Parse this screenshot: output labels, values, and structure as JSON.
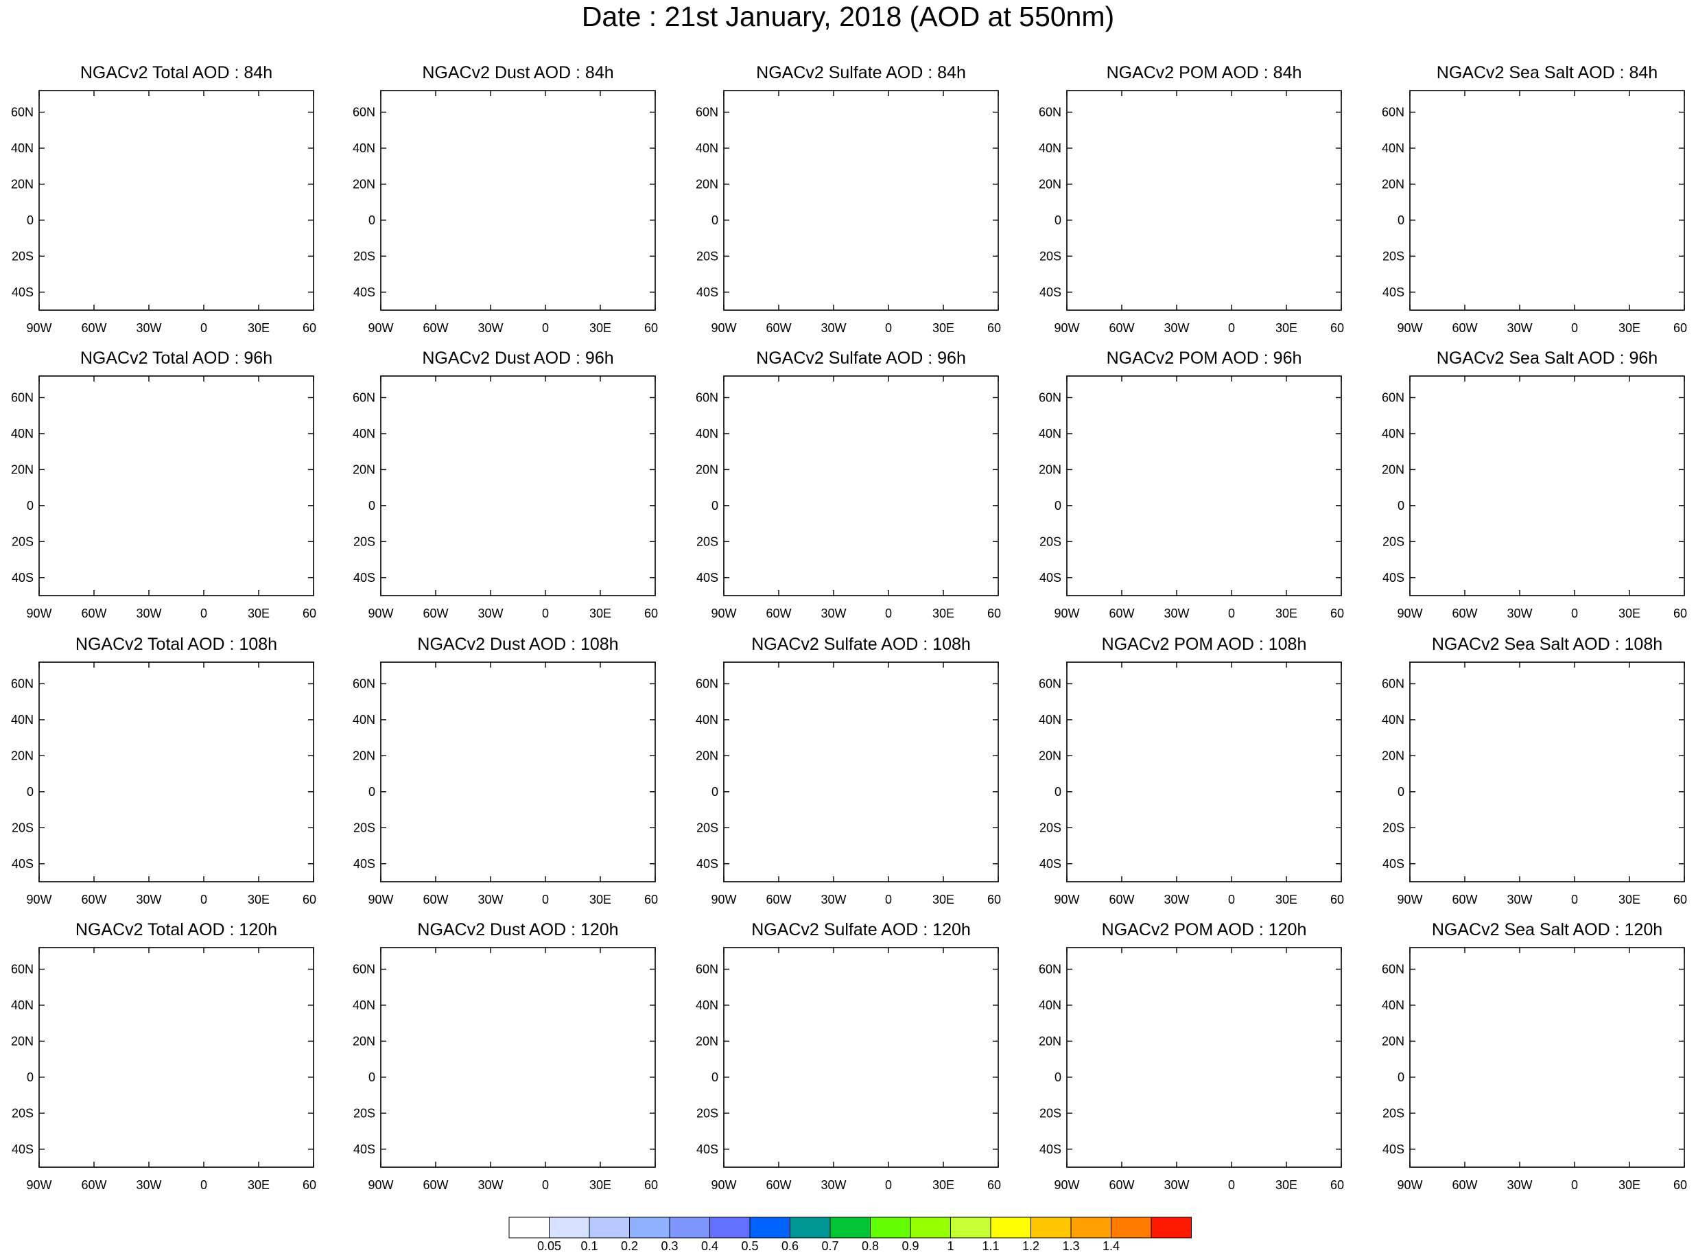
{
  "title": "Date : 21st January, 2018 (AOD at 550nm)",
  "lon_labels": [
    "90W",
    "60W",
    "30W",
    "0",
    "30E",
    "60E"
  ],
  "lat_labels": [
    "60N",
    "40N",
    "20N",
    "0",
    "20S",
    "40S"
  ],
  "columns": [
    {
      "id": "total",
      "palette_scale": 1.0
    },
    {
      "id": "dust",
      "palette_scale": 0.85
    },
    {
      "id": "sulfate",
      "palette_scale": 0.35
    },
    {
      "id": "pom",
      "palette_scale": 0.5
    },
    {
      "id": "seasalt",
      "palette_scale": 0.45
    }
  ],
  "panels": [
    [
      "NGACv2 Total AOD : 84h",
      "NGACv2 Dust AOD : 84h",
      "NGACv2 Sulfate AOD : 84h",
      "NGACv2 POM AOD : 84h",
      "NGACv2 Sea Salt AOD : 84h"
    ],
    [
      "NGACv2 Total AOD : 96h",
      "NGACv2 Dust AOD : 96h",
      "NGACv2 Sulfate AOD : 96h",
      "NGACv2 POM AOD : 96h",
      "NGACv2 Sea Salt AOD : 96h"
    ],
    [
      "NGACv2 Total AOD : 108h",
      "NGACv2 Dust AOD : 108h",
      "NGACv2 Sulfate AOD : 108h",
      "NGACv2 POM AOD : 108h",
      "NGACv2 Sea Salt AOD : 108h"
    ],
    [
      "NGACv2 Total AOD : 120h",
      "NGACv2 Dust AOD : 120h",
      "NGACv2 Sulfate AOD : 120h",
      "NGACv2 POM AOD : 120h",
      "NGACv2 Sea Salt  AOD : 120h"
    ]
  ],
  "colorbar": {
    "labels": [
      "0.05",
      "0.1",
      "0.2",
      "0.3",
      "0.4",
      "0.5",
      "0.6",
      "0.7",
      "0.8",
      "0.9",
      "1",
      "1.1",
      "1.2",
      "1.3",
      "1.4"
    ],
    "colors": [
      "#ffffff",
      "#d6e2ff",
      "#b5c9ff",
      "#8eb2ff",
      "#7f96ff",
      "#6370ff",
      "#0063ff",
      "#009696",
      "#00c633",
      "#63ff00",
      "#96ff00",
      "#c6ff33",
      "#ffff00",
      "#ffc600",
      "#ffa000",
      "#ff7c00",
      "#ff1900"
    ]
  }
}
